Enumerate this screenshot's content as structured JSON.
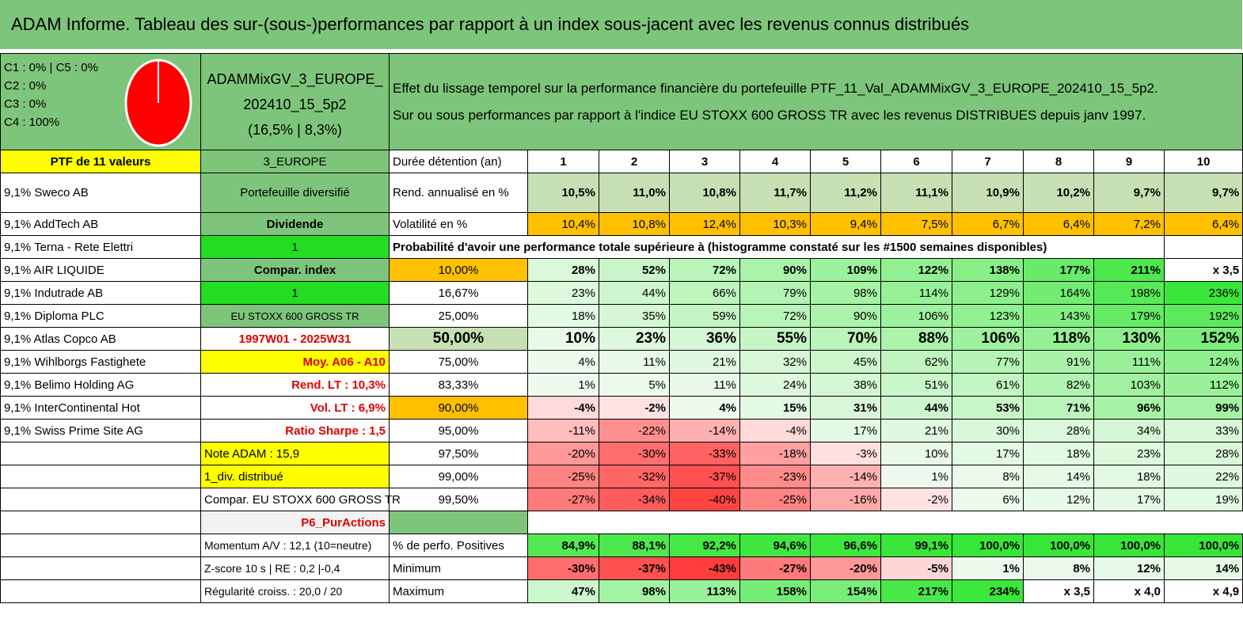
{
  "title": "ADAM Informe. Tableau des sur-(sous-)performances par rapport à un index sous-jacent avec les revenus connus distribués",
  "pie_legend": [
    "C1 : 0% | C5 : 0%",
    "C2 : 0%",
    "C3 : 0%",
    "C4 : 100%"
  ],
  "fund": {
    "name": "ADAMMixGV_3_EUROPE_202410_15_5p2",
    "stats": "(16,5% | 8,3%)",
    "zone": "3_EUROPE",
    "type": "Portefeuille diversifié",
    "style": "Dividende",
    "flag1": "1",
    "compar_label": "Compar. index",
    "flag2": "1",
    "index_name": "EU STOXX 600 GROSS TR",
    "period": "1997W01 - 2025W31",
    "moy": "Moy. A06 - A10",
    "rend_lt": "Rend. LT : 10,3%",
    "vol_lt": "Vol. LT : 6,9%",
    "sharpe": "Ratio Sharpe : 1,5",
    "note": "Note ADAM : 15,9",
    "div": "1_div. distribué",
    "compar_full": "Compar. EU STOXX 600 GROSS TR",
    "p6": "P6_PurActions",
    "momentum": "Momentum A/V : 12,1 (10=neutre)",
    "zscore": "Z-score 10 s | RE : 0,2 |-0,4",
    "regularite": "Régularité croiss. : 20,0 / 20"
  },
  "description": {
    "line1": "Effet du lissage temporel sur la performance financière du portefeuille PTF_11_Val_ADAMMixGV_3_EUROPE_202410_15_5p2.",
    "line2": "Sur ou sous performances par rapport à l'indice EU STOXX 600 GROSS TR avec les revenus DISTRIBUES depuis janv 1997."
  },
  "portfolio": {
    "header": "PTF de 11 valeurs",
    "holdings": [
      "9,1% Sweco AB",
      "9,1% AddTech AB",
      "9,1% Terna - Rete Elettri",
      "9,1% AIR LIQUIDE",
      "9,1% Indutrade AB",
      "9,1% Diploma PLC",
      "9,1% Atlas Copco AB",
      "9,1% Wihlborgs Fastighete",
      "9,1% Belimo Holding AG",
      "9,1% InterContinental Hot",
      "9,1% Swiss Prime Site AG"
    ]
  },
  "grid": {
    "duration_label": "Durée détention (an)",
    "years": [
      "1",
      "2",
      "3",
      "4",
      "5",
      "6",
      "7",
      "8",
      "9",
      "10"
    ],
    "rend_label": "Rend. annualisé en %",
    "rend": [
      "10,5%",
      "11,0%",
      "10,8%",
      "11,7%",
      "11,2%",
      "11,1%",
      "10,9%",
      "10,2%",
      "9,7%",
      "9,7%"
    ],
    "vol_label": "Volatilité en %",
    "vol": [
      "10,4%",
      "10,8%",
      "12,4%",
      "10,3%",
      "9,4%",
      "7,5%",
      "6,7%",
      "6,4%",
      "7,2%",
      "6,4%"
    ],
    "prob_label": "Probabilité d'avoir une performance totale supérieure à (histogramme constaté sur les #1500 semaines disponibles)",
    "prob_rows": [
      {
        "p": "10,00%",
        "v": [
          "28%",
          "52%",
          "72%",
          "90%",
          "109%",
          "122%",
          "138%",
          "177%",
          "211%",
          "x 3,5"
        ]
      },
      {
        "p": "16,67%",
        "v": [
          "23%",
          "44%",
          "66%",
          "79%",
          "98%",
          "114%",
          "129%",
          "164%",
          "198%",
          "236%"
        ]
      },
      {
        "p": "25,00%",
        "v": [
          "18%",
          "35%",
          "59%",
          "72%",
          "90%",
          "106%",
          "123%",
          "143%",
          "179%",
          "192%"
        ]
      },
      {
        "p": "50,00%",
        "v": [
          "10%",
          "23%",
          "36%",
          "55%",
          "70%",
          "88%",
          "106%",
          "118%",
          "130%",
          "152%"
        ]
      },
      {
        "p": "75,00%",
        "v": [
          "4%",
          "11%",
          "21%",
          "32%",
          "45%",
          "62%",
          "77%",
          "91%",
          "111%",
          "124%"
        ]
      },
      {
        "p": "83,33%",
        "v": [
          "1%",
          "5%",
          "11%",
          "24%",
          "38%",
          "51%",
          "61%",
          "82%",
          "103%",
          "112%"
        ]
      },
      {
        "p": "90,00%",
        "v": [
          "-4%",
          "-2%",
          "4%",
          "15%",
          "31%",
          "44%",
          "53%",
          "71%",
          "96%",
          "99%"
        ]
      },
      {
        "p": "95,00%",
        "v": [
          "-11%",
          "-22%",
          "-14%",
          "-4%",
          "17%",
          "21%",
          "30%",
          "28%",
          "34%",
          "33%"
        ]
      },
      {
        "p": "97,50%",
        "v": [
          "-20%",
          "-30%",
          "-33%",
          "-18%",
          "-3%",
          "10%",
          "17%",
          "18%",
          "23%",
          "28%"
        ]
      },
      {
        "p": "99,00%",
        "v": [
          "-25%",
          "-32%",
          "-37%",
          "-23%",
          "-14%",
          "1%",
          "8%",
          "14%",
          "18%",
          "22%"
        ]
      },
      {
        "p": "99,50%",
        "v": [
          "-27%",
          "-34%",
          "-40%",
          "-25%",
          "-16%",
          "-2%",
          "6%",
          "12%",
          "17%",
          "19%"
        ]
      }
    ],
    "pos_label": "% de perfo. Positives",
    "pos": [
      "84,9%",
      "88,1%",
      "92,2%",
      "94,6%",
      "96,6%",
      "99,1%",
      "100,0%",
      "100,0%",
      "100,0%",
      "100,0%"
    ],
    "min_label": "Minimum",
    "min": [
      "-30%",
      "-37%",
      "-43%",
      "-27%",
      "-20%",
      "-5%",
      "1%",
      "8%",
      "12%",
      "14%"
    ],
    "max_label": "Maximum",
    "max": [
      "47%",
      "98%",
      "113%",
      "158%",
      "154%",
      "217%",
      "234%",
      "x 3,5",
      "x 4,0",
      "x 4,9"
    ]
  },
  "colors": {
    "header_green": "#7dc57a",
    "bright_green": "#22dd22",
    "yellow": "#ffff00",
    "orange": "#ffc000",
    "pie_red": "#ff0000"
  }
}
